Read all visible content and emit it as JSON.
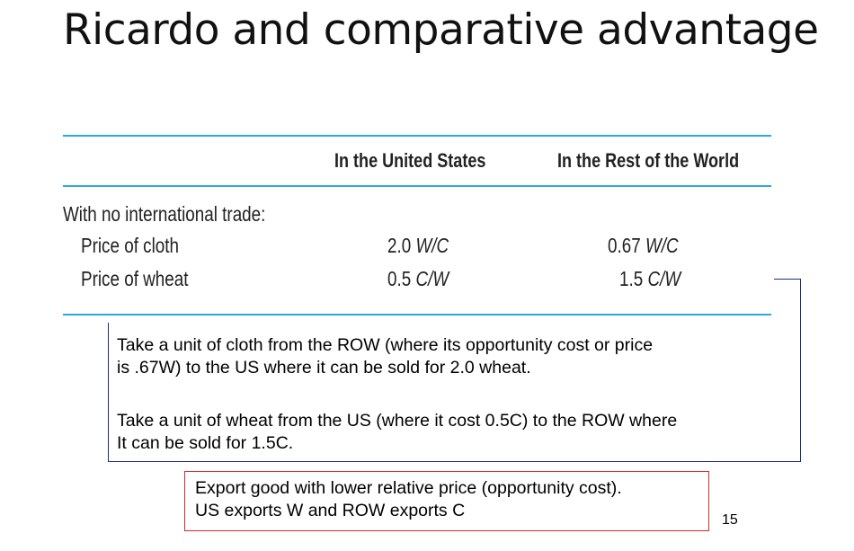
{
  "slide": {
    "title": "Ricardo and comparative advantage",
    "page_number": "15"
  },
  "table": {
    "headers": [
      "",
      "In the United States",
      "In the Rest of the World"
    ],
    "section_label": "With no international trade:",
    "rows": [
      {
        "label": "Price of cloth",
        "us_value": "2.0",
        "us_unit": "W/C",
        "row_value": "0.67",
        "row_unit": "W/C"
      },
      {
        "label": "Price of wheat",
        "us_value": "0.5",
        "us_unit": "C/W",
        "row_value": "1.5",
        "row_unit": "C/W"
      }
    ]
  },
  "explanation": {
    "para1_line1": "Take a unit of cloth from the ROW (where its opportunity cost or price",
    "para1_line2": "is .67W) to the US where it can be sold for 2.0 wheat.",
    "para2_line1": "Take a unit of wheat from the US (where it cost 0.5C) to the ROW where",
    "para2_line2": "It can be sold for 1.5C."
  },
  "conclusion": {
    "line1": "Export good with lower relative price (opportunity cost).",
    "line2": "US exports W and ROW exports C"
  },
  "colors": {
    "rule": "#29a9df",
    "bracket": "#1a2a8c",
    "box_border": "#d42a2a"
  }
}
